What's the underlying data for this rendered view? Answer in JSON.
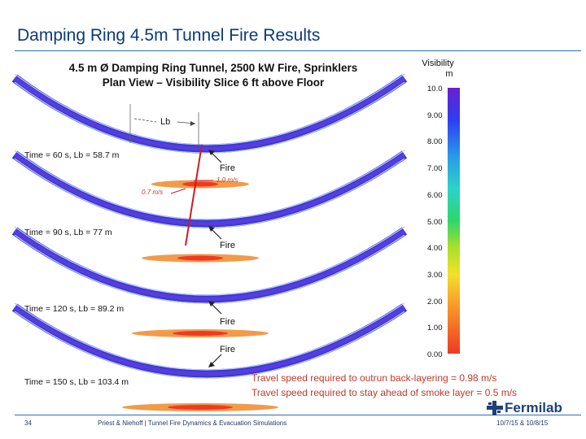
{
  "slide_title": "Damping Ring 4.5m Tunnel Fire Results",
  "figure": {
    "title_line1": "4.5 m Ø Damping Ring Tunnel, 2500 kW Fire, Sprinklers",
    "title_line2": "Plan View – Visibility Slice 6 ft above Floor",
    "lb_label": "Lb",
    "speed_left": "0.7 m/s",
    "speed_right": "1.0 m/s",
    "fire_label": "Fire",
    "panels": [
      {
        "caption": "Time = 60 s, Lb = 58.7 m"
      },
      {
        "caption": "Time = 90 s, Lb = 77 m"
      },
      {
        "caption": "Time = 120 s, Lb = 89.2 m"
      },
      {
        "caption": "Time = 150 s, Lb = 103.4 m"
      }
    ]
  },
  "colorbar": {
    "title_line1": "Visibility",
    "title_line2": "m",
    "ticks": [
      "10.0",
      "9.00",
      "8.00",
      "7.00",
      "6.00",
      "5.00",
      "4.00",
      "3.00",
      "2.00",
      "1.00",
      "0.00"
    ]
  },
  "notes": {
    "line1": "Travel speed required to outrun back-layering = 0.98 m/s",
    "line2": "Travel speed required to stay ahead of smoke layer = 0.5 m/s"
  },
  "footer": {
    "page": "34",
    "authors": "Priest & Niehoff | Tunnel Fire Dynamics & Evacuation Simulations",
    "dates": "10/7/15 & 10/8/15",
    "logo_text": "Fermilab"
  },
  "colors": {
    "title_blue": "#0a3a7a",
    "note_red": "#c0392b",
    "tunnel_blue": "#2f3ae0",
    "hot_red": "#ee3a23"
  }
}
